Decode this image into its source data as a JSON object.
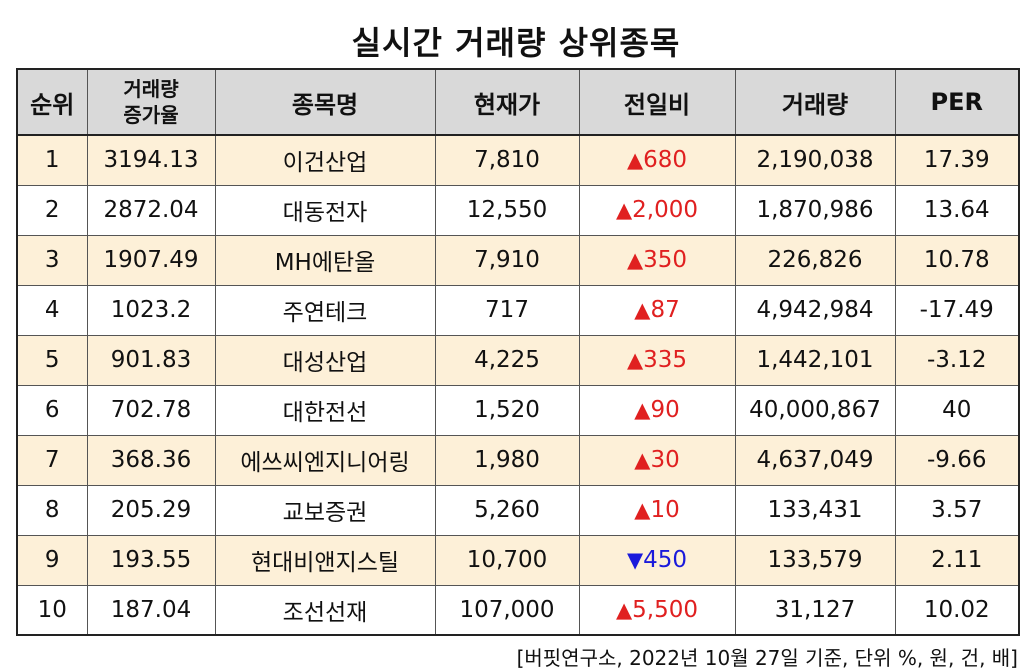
{
  "title": "실시간 거래량 상위종목",
  "colors": {
    "header_bg": "#d9d9d9",
    "odd_row_bg": "#fdf0d8",
    "up": "#e02020",
    "down": "#1a1adb"
  },
  "headers": {
    "rank": "순위",
    "growth_line1": "거래량",
    "growth_line2": "증가율",
    "name": "종목명",
    "price": "현재가",
    "change": "전일비",
    "volume": "거래량",
    "per": "PER"
  },
  "rows": [
    {
      "rank": "1",
      "growth": "3194.13",
      "name": "이건산업",
      "price": "7,810",
      "dir": "up",
      "change": "680",
      "volume": "2,190,038",
      "per": "17.39"
    },
    {
      "rank": "2",
      "growth": "2872.04",
      "name": "대동전자",
      "price": "12,550",
      "dir": "up",
      "change": "2,000",
      "volume": "1,870,986",
      "per": "13.64"
    },
    {
      "rank": "3",
      "growth": "1907.49",
      "name": "MH에탄올",
      "price": "7,910",
      "dir": "up",
      "change": "350",
      "volume": "226,826",
      "per": "10.78"
    },
    {
      "rank": "4",
      "growth": "1023.2",
      "name": "주연테크",
      "price": "717",
      "dir": "up",
      "change": "87",
      "volume": "4,942,984",
      "per": "-17.49"
    },
    {
      "rank": "5",
      "growth": "901.83",
      "name": "대성산업",
      "price": "4,225",
      "dir": "up",
      "change": "335",
      "volume": "1,442,101",
      "per": "-3.12"
    },
    {
      "rank": "6",
      "growth": "702.78",
      "name": "대한전선",
      "price": "1,520",
      "dir": "up",
      "change": "90",
      "volume": "40,000,867",
      "per": "40"
    },
    {
      "rank": "7",
      "growth": "368.36",
      "name": "에쓰씨엔지니어링",
      "price": "1,980",
      "dir": "up",
      "change": "30",
      "volume": "4,637,049",
      "per": "-9.66"
    },
    {
      "rank": "8",
      "growth": "205.29",
      "name": "교보증권",
      "price": "5,260",
      "dir": "up",
      "change": "10",
      "volume": "133,431",
      "per": "3.57"
    },
    {
      "rank": "9",
      "growth": "193.55",
      "name": "현대비앤지스틸",
      "price": "10,700",
      "dir": "down",
      "change": "450",
      "volume": "133,579",
      "per": "2.11"
    },
    {
      "rank": "10",
      "growth": "187.04",
      "name": "조선선재",
      "price": "107,000",
      "dir": "up",
      "change": "5,500",
      "volume": "31,127",
      "per": "10.02"
    }
  ],
  "footnote": "[버핏연구소, 2022년 10월 27일 기준, 단위 %, 원, 건, 배]"
}
